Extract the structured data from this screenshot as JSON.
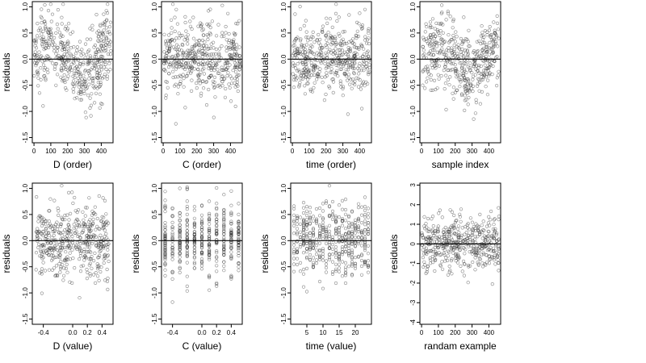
{
  "chart_data": [
    {
      "type": "scatter",
      "title": "",
      "xlabel": "D (order)",
      "ylabel": "residuals",
      "xlim": [
        -10,
        470
      ],
      "ylim": [
        -1.6,
        1.1
      ],
      "xticks": [
        "0",
        "100",
        "200",
        "300",
        "400"
      ],
      "xtick_values": [
        0,
        100,
        200,
        300,
        400
      ],
      "yticks": [
        "-1.5",
        "-1.0",
        "-0.5",
        "0.0",
        "0.5",
        "1.0"
      ],
      "ytick_values": [
        -1.5,
        -1.0,
        -0.5,
        0.0,
        0.5,
        1.0
      ],
      "reference_line_y": 0,
      "grid": false,
      "points": {
        "n": 460,
        "x_range": [
          1,
          460
        ],
        "pattern": "order_wave",
        "spread": 0.55
      }
    },
    {
      "type": "scatter",
      "title": "",
      "xlabel": "C (order)",
      "ylabel": "residuals",
      "xlim": [
        -10,
        470
      ],
      "ylim": [
        -1.6,
        1.1
      ],
      "xticks": [
        "0",
        "100",
        "200",
        "300",
        "400"
      ],
      "xtick_values": [
        0,
        100,
        200,
        300,
        400
      ],
      "yticks": [
        "-1.5",
        "-1.0",
        "-0.5",
        "0.0",
        "0.5",
        "1.0"
      ],
      "ytick_values": [
        -1.5,
        -1.0,
        -0.5,
        0.0,
        0.5,
        1.0
      ],
      "reference_line_y": 0,
      "grid": false,
      "points": {
        "n": 460,
        "x_range": [
          1,
          460
        ],
        "pattern": "order_flat",
        "spread": 0.5
      }
    },
    {
      "type": "scatter",
      "title": "",
      "xlabel": "time (order)",
      "ylabel": "residuals",
      "xlim": [
        -10,
        470
      ],
      "ylim": [
        -1.6,
        1.1
      ],
      "xticks": [
        "0",
        "100",
        "200",
        "300",
        "400"
      ],
      "xtick_values": [
        0,
        100,
        200,
        300,
        400
      ],
      "yticks": [
        "-1.5",
        "-1.0",
        "-0.5",
        "0.0",
        "0.5",
        "1.0"
      ],
      "ytick_values": [
        -1.5,
        -1.0,
        -0.5,
        0.0,
        0.5,
        1.0
      ],
      "reference_line_y": 0,
      "grid": false,
      "points": {
        "n": 460,
        "x_range": [
          1,
          460
        ],
        "pattern": "order_flat",
        "spread": 0.5
      }
    },
    {
      "type": "scatter",
      "title": "",
      "xlabel": "sample index",
      "ylabel": "residuals",
      "xlim": [
        -10,
        470
      ],
      "ylim": [
        -1.6,
        1.1
      ],
      "xticks": [
        "0",
        "100",
        "200",
        "300",
        "400"
      ],
      "xtick_values": [
        0,
        100,
        200,
        300,
        400
      ],
      "yticks": [
        "-1.5",
        "-1.0",
        "-0.5",
        "0.0",
        "0.5",
        "1.0"
      ],
      "ytick_values": [
        -1.5,
        -1.0,
        -0.5,
        0.0,
        0.5,
        1.0
      ],
      "reference_line_y": 0,
      "grid": false,
      "points": {
        "n": 460,
        "x_range": [
          1,
          460
        ],
        "pattern": "order_wave",
        "spread": 0.5
      }
    },
    {
      "type": "scatter",
      "title": "",
      "xlabel": "D (value)",
      "ylabel": "residuals",
      "xlim": [
        -0.55,
        0.55
      ],
      "ylim": [
        -1.6,
        1.1
      ],
      "xticks": [
        "-0.4",
        "0.0",
        "0.2",
        "0.4"
      ],
      "xtick_values": [
        -0.4,
        0.0,
        0.2,
        0.4
      ],
      "yticks": [
        "-1.5",
        "-1.0",
        "-0.5",
        "0.0",
        "0.5",
        "1.0"
      ],
      "ytick_values": [
        -1.5,
        -1.0,
        -0.5,
        0.0,
        0.5,
        1.0
      ],
      "reference_line_y": 0,
      "grid": false,
      "points": {
        "n": 460,
        "x_range": [
          -0.5,
          0.5
        ],
        "pattern": "value_continuous",
        "spread": 0.5
      }
    },
    {
      "type": "scatter",
      "title": "",
      "xlabel": "C (value)",
      "ylabel": "residuals",
      "xlim": [
        -0.55,
        0.55
      ],
      "ylim": [
        -1.6,
        1.1
      ],
      "xticks": [
        "-0.4",
        "0.0",
        "0.2",
        "0.4"
      ],
      "xtick_values": [
        -0.4,
        0.0,
        0.2,
        0.4
      ],
      "yticks": [
        "-1.5",
        "-1.0",
        "-0.5",
        "0.0",
        "0.5",
        "1.0"
      ],
      "ytick_values": [
        -1.5,
        -1.0,
        -0.5,
        0.0,
        0.5,
        1.0
      ],
      "reference_line_y": 0,
      "grid": false,
      "points": {
        "n": 460,
        "levels": [
          -0.5,
          -0.4,
          -0.3,
          -0.2,
          -0.1,
          0.0,
          0.1,
          0.2,
          0.3,
          0.4,
          0.5
        ],
        "pattern": "value_discrete",
        "spread": 0.5
      }
    },
    {
      "type": "scatter",
      "title": "",
      "xlabel": "time (value)",
      "ylabel": "residuals",
      "xlim": [
        0,
        25
      ],
      "ylim": [
        -1.6,
        1.1
      ],
      "xticks": [
        "5",
        "10",
        "15",
        "20"
      ],
      "xtick_values": [
        5,
        10,
        15,
        20
      ],
      "yticks": [
        "-1.5",
        "-1.0",
        "-0.5",
        "0.0",
        "0.5",
        "1.0"
      ],
      "ytick_values": [
        -1.5,
        -1.0,
        -0.5,
        0.0,
        0.5,
        1.0
      ],
      "reference_line_y": 0,
      "grid": false,
      "points": {
        "n": 460,
        "levels": [
          1,
          2,
          3,
          4,
          5,
          6,
          7,
          8,
          9,
          10,
          11,
          12,
          13,
          14,
          15,
          16,
          17,
          18,
          19,
          20,
          21,
          22,
          23,
          24
        ],
        "pattern": "value_discrete",
        "spread": 0.5
      }
    },
    {
      "type": "scatter",
      "title": "",
      "xlabel": "randam example",
      "ylabel": "residuals",
      "xlim": [
        -10,
        470
      ],
      "ylim": [
        -4.1,
        3.1
      ],
      "xticks": [
        "0",
        "100",
        "200",
        "300",
        "400"
      ],
      "xtick_values": [
        0,
        100,
        200,
        300,
        400
      ],
      "yticks": [
        "-4",
        "-3",
        "-2",
        "-1",
        "0",
        "1",
        "2",
        "3"
      ],
      "ytick_values": [
        -4,
        -3,
        -2,
        -1,
        0,
        1,
        2,
        3
      ],
      "reference_line_y": 0,
      "grid": false,
      "points": {
        "n": 460,
        "x_range": [
          1,
          460
        ],
        "pattern": "normal",
        "spread": 1.0
      }
    }
  ]
}
